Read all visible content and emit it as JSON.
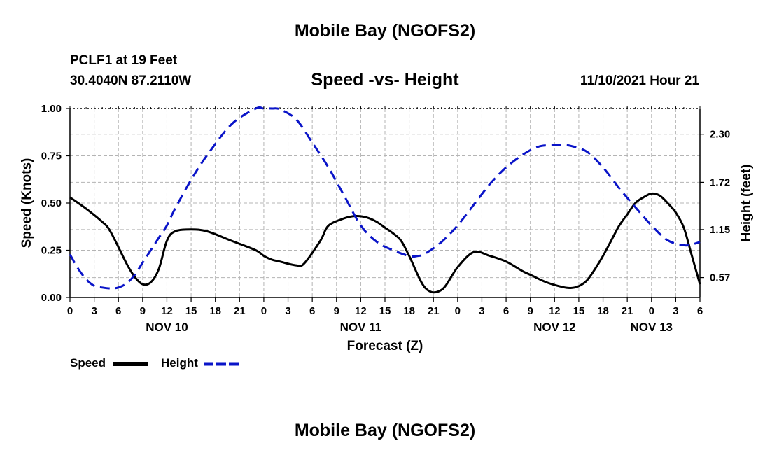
{
  "page": {
    "title": "Mobile Bay (NGOFS2)",
    "station": "PCLF1 at 19 Feet",
    "coords": "30.4040N  87.2110W",
    "subtitle": "Speed -vs- Height",
    "datetime": "11/10/2021 Hour 21",
    "footer_title": "Mobile Bay (NGOFS2)"
  },
  "legend": {
    "speed_label": "Speed",
    "height_label": "Height"
  },
  "colors": {
    "speed": "#000000",
    "height": "#0a14c8",
    "grid": "#b4b4b4"
  },
  "chart_data": {
    "type": "line",
    "title": "Speed -vs- Height",
    "xlabel": "Forecast (Z)",
    "ylabel": "Speed (Knots)",
    "y2label": "Height (feet)",
    "x_unit": "forecast hour from NOV 10 00Z",
    "xlim": [
      0,
      78
    ],
    "ylim": [
      0,
      1.0
    ],
    "y2lim": [
      0.33,
      2.61
    ],
    "y_ticks": [
      "0.00",
      "0.25",
      "0.50",
      "0.75",
      "1.00"
    ],
    "y2_ticks": [
      "0.57",
      "1.15",
      "1.72",
      "2.30"
    ],
    "x_tick_labels": [
      "0",
      "3",
      "6",
      "9",
      "12",
      "15",
      "18",
      "21",
      "0",
      "3",
      "6",
      "9",
      "12",
      "15",
      "18",
      "21",
      "0",
      "3",
      "6",
      "9",
      "12",
      "15",
      "18",
      "21",
      "0",
      "3",
      "6"
    ],
    "day_labels": [
      {
        "label": "NOV 10",
        "hour": 12
      },
      {
        "label": "NOV 11",
        "hour": 36
      },
      {
        "label": "NOV 12",
        "hour": 60
      },
      {
        "label": "NOV 13",
        "hour": 72
      }
    ],
    "series": [
      {
        "name": "Speed",
        "axis": "left",
        "style": "solid",
        "x": [
          0,
          2,
          4,
          5,
          7,
          8,
          9,
          10,
          11,
          12,
          13,
          15,
          17,
          20,
          23,
          24,
          25,
          26,
          28,
          29,
          31,
          32,
          34,
          35,
          36,
          37,
          38,
          39,
          40,
          41,
          42,
          44,
          46,
          48,
          50,
          52,
          54,
          56,
          57,
          59,
          61,
          62,
          63,
          64,
          65,
          66,
          67,
          68,
          69,
          70,
          71,
          72,
          73,
          74,
          75,
          76,
          77,
          78
        ],
        "values": [
          0.53,
          0.47,
          0.4,
          0.35,
          0.18,
          0.11,
          0.07,
          0.08,
          0.15,
          0.3,
          0.35,
          0.36,
          0.35,
          0.3,
          0.25,
          0.22,
          0.2,
          0.19,
          0.17,
          0.18,
          0.3,
          0.38,
          0.42,
          0.43,
          0.43,
          0.42,
          0.4,
          0.37,
          0.34,
          0.3,
          0.22,
          0.05,
          0.04,
          0.16,
          0.24,
          0.22,
          0.19,
          0.14,
          0.12,
          0.08,
          0.055,
          0.05,
          0.06,
          0.09,
          0.15,
          0.22,
          0.3,
          0.38,
          0.44,
          0.5,
          0.53,
          0.55,
          0.54,
          0.5,
          0.45,
          0.37,
          0.22,
          0.07
        ]
      },
      {
        "name": "Height",
        "axis": "right",
        "style": "dashed",
        "x": [
          0,
          1,
          2,
          3,
          4,
          5,
          6,
          7,
          8,
          9,
          10,
          11,
          12,
          13,
          15,
          17,
          20,
          23,
          24,
          25,
          26,
          28,
          30,
          32,
          34,
          36,
          38,
          40,
          42,
          43,
          44,
          46,
          48,
          50,
          52,
          54,
          56,
          58,
          60,
          61,
          62,
          64,
          66,
          68,
          70,
          72,
          74,
          76,
          77,
          78
        ],
        "values": [
          0.85,
          0.68,
          0.55,
          0.47,
          0.45,
          0.44,
          0.45,
          0.5,
          0.6,
          0.75,
          0.9,
          1.05,
          1.2,
          1.4,
          1.75,
          2.05,
          2.42,
          2.61,
          2.61,
          2.61,
          2.6,
          2.48,
          2.2,
          1.9,
          1.55,
          1.2,
          1.0,
          0.9,
          0.83,
          0.83,
          0.86,
          1.0,
          1.2,
          1.45,
          1.7,
          1.9,
          2.05,
          2.15,
          2.17,
          2.17,
          2.16,
          2.09,
          1.9,
          1.65,
          1.42,
          1.2,
          1.02,
          0.96,
          0.97,
          1.0
        ]
      }
    ]
  }
}
